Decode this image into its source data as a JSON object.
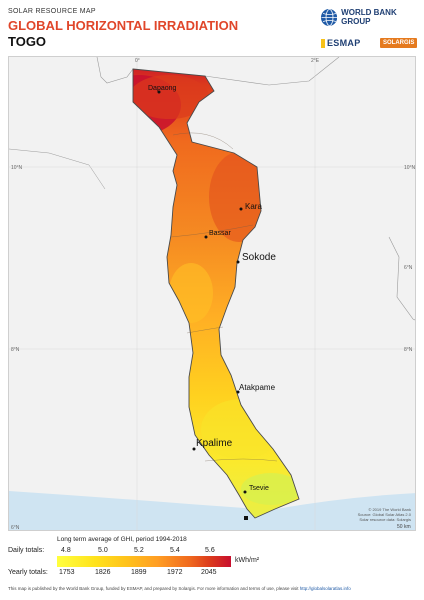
{
  "header": {
    "supertitle": "SOLAR RESOURCE MAP",
    "title": "GLOBAL HORIZONTAL IRRADIATION",
    "country": "TOGO"
  },
  "logos": {
    "wbg": "WORLD BANK GROUP",
    "esmap": "ESMAP",
    "solargis": "SOLARGIS"
  },
  "map": {
    "coords": {
      "lon_0": "0°",
      "lon_2e": "2°E",
      "lat_10n_left": "10°N",
      "lat_10n_right": "10°N",
      "lat_8n_left": "8°N",
      "lat_8n_right": "8°N",
      "lat_6n_left": "6°N",
      "lat_6n_right": "6°N"
    },
    "cities": {
      "dapaong": "Dapaong",
      "kara": "Kara",
      "bassar": "Bassar",
      "sokode": "Sokode",
      "atakpame": "Atakpame",
      "kpalime": "Kpalime",
      "tsevie": "Tsevie"
    },
    "credits": {
      "line1": "© 2019 The World Bank",
      "line2": "Source: Global Solar Atlas 2.0",
      "line3": "Solar resource data: Solargis"
    },
    "scale": "50 km"
  },
  "legend": {
    "title": "Long term average of GHI, period 1994-2018",
    "daily_label": "Daily totals:",
    "yearly_label": "Yearly totals:",
    "daily_ticks": [
      "4.8",
      "5.0",
      "5.2",
      "5.4",
      "5.6"
    ],
    "yearly_ticks": [
      "1753",
      "1826",
      "1899",
      "1972",
      "2045"
    ],
    "unit": "kWh/m²",
    "colors": [
      "#ffff3f",
      "#ffe21c",
      "#ffc21b",
      "#ff9d23",
      "#f06a1e",
      "#db3a1c",
      "#c80f2e"
    ]
  },
  "footer": {
    "text": "This map is published by the World Bank Group, funded by ESMAP, and prepared by Solargis. For more information and terms of use, please visit ",
    "link": "http://globalsolaratlas.info"
  }
}
